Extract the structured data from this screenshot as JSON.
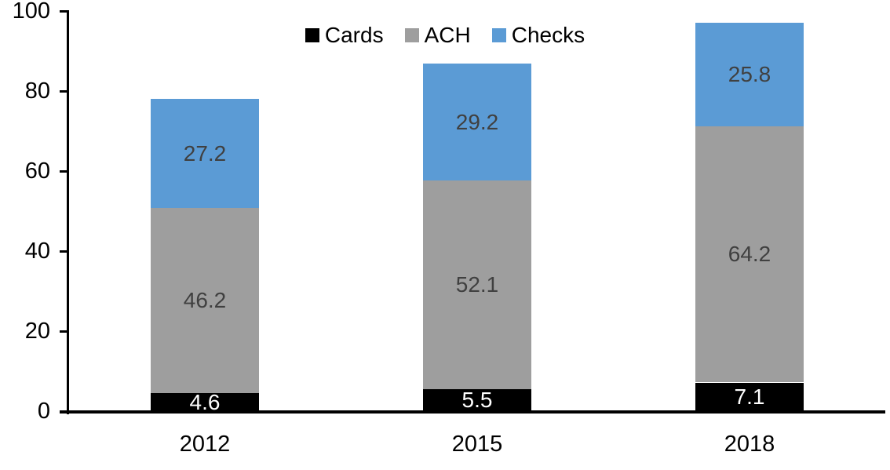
{
  "chart_data": {
    "type": "bar",
    "stacked": true,
    "categories": [
      "2012",
      "2015",
      "2018"
    ],
    "series": [
      {
        "name": "Cards",
        "color": "#000000",
        "label_color": "#FFFFFF",
        "values": [
          4.6,
          5.5,
          7.1
        ],
        "labels": [
          "4.6",
          "5.5",
          "7.1"
        ]
      },
      {
        "name": "ACH",
        "color": "#9E9E9E",
        "label_color": "#404040",
        "values": [
          46.2,
          52.1,
          64.2
        ],
        "labels": [
          "46.2",
          "52.1",
          "64.2"
        ]
      },
      {
        "name": "Checks",
        "color": "#5B9BD5",
        "label_color": "#404040",
        "values": [
          27.2,
          29.2,
          25.8
        ],
        "labels": [
          "27.2",
          "29.2",
          "25.8"
        ]
      }
    ],
    "y_axis": {
      "min": 0,
      "max": 100,
      "tick_interval": 20,
      "tick_labels": [
        "0",
        "20",
        "40",
        "60",
        "80",
        "100"
      ]
    },
    "x_axis": {
      "tick_labels": [
        "2012",
        "2015",
        "2018"
      ]
    },
    "legend": {
      "position": "top",
      "entries": [
        "Cards",
        "ACH",
        "Checks"
      ]
    },
    "grid": false,
    "axis_color": "#000000",
    "background_color": "#FFFFFF"
  }
}
